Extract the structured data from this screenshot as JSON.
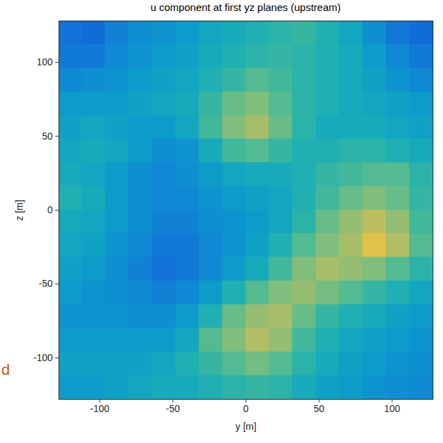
{
  "chart_data": {
    "type": "heatmap",
    "title": "u component at first yz planes (upstream)",
    "xlabel": "y [m]",
    "ylabel": "z [m]",
    "xlim": [
      -128,
      128
    ],
    "ylim": [
      -128,
      128
    ],
    "xticks": [
      -100,
      -50,
      0,
      50,
      100
    ],
    "yticks": [
      -100,
      -50,
      0,
      50,
      100
    ],
    "clim": [
      0,
      1
    ],
    "x_edges": [
      -128,
      -112,
      -96,
      -80,
      -64,
      -48,
      -32,
      -16,
      0,
      16,
      32,
      48,
      64,
      80,
      96,
      112,
      128
    ],
    "y_edges": [
      128,
      112,
      96,
      80,
      64,
      48,
      32,
      16,
      0,
      -16,
      -32,
      -48,
      -64,
      -80,
      -96,
      -112,
      -128
    ],
    "values": [
      [
        0.2,
        0.18,
        0.25,
        0.3,
        0.32,
        0.35,
        0.4,
        0.42,
        0.45,
        0.48,
        0.5,
        0.45,
        0.4,
        0.3,
        0.22,
        0.18
      ],
      [
        0.22,
        0.22,
        0.28,
        0.32,
        0.35,
        0.38,
        0.42,
        0.45,
        0.48,
        0.5,
        0.48,
        0.45,
        0.42,
        0.35,
        0.28,
        0.22
      ],
      [
        0.28,
        0.3,
        0.32,
        0.35,
        0.38,
        0.4,
        0.45,
        0.5,
        0.55,
        0.52,
        0.48,
        0.45,
        0.42,
        0.38,
        0.32,
        0.28
      ],
      [
        0.35,
        0.35,
        0.35,
        0.38,
        0.4,
        0.42,
        0.5,
        0.58,
        0.62,
        0.55,
        0.48,
        0.45,
        0.42,
        0.4,
        0.38,
        0.35
      ],
      [
        0.38,
        0.4,
        0.38,
        0.35,
        0.35,
        0.4,
        0.52,
        0.62,
        0.68,
        0.58,
        0.48,
        0.42,
        0.42,
        0.42,
        0.4,
        0.38
      ],
      [
        0.4,
        0.42,
        0.4,
        0.35,
        0.3,
        0.32,
        0.42,
        0.52,
        0.55,
        0.5,
        0.45,
        0.45,
        0.48,
        0.48,
        0.45,
        0.42
      ],
      [
        0.42,
        0.4,
        0.35,
        0.3,
        0.28,
        0.3,
        0.35,
        0.4,
        0.42,
        0.42,
        0.45,
        0.5,
        0.52,
        0.55,
        0.55,
        0.48
      ],
      [
        0.45,
        0.42,
        0.35,
        0.3,
        0.28,
        0.28,
        0.32,
        0.35,
        0.38,
        0.4,
        0.45,
        0.52,
        0.58,
        0.62,
        0.58,
        0.5
      ],
      [
        0.42,
        0.4,
        0.35,
        0.3,
        0.25,
        0.25,
        0.3,
        0.32,
        0.35,
        0.4,
        0.48,
        0.58,
        0.65,
        0.72,
        0.65,
        0.52
      ],
      [
        0.4,
        0.38,
        0.32,
        0.28,
        0.22,
        0.22,
        0.28,
        0.32,
        0.38,
        0.45,
        0.55,
        0.62,
        0.68,
        0.8,
        0.7,
        0.55
      ],
      [
        0.38,
        0.35,
        0.3,
        0.25,
        0.2,
        0.22,
        0.28,
        0.35,
        0.42,
        0.52,
        0.62,
        0.68,
        0.65,
        0.62,
        0.55,
        0.48
      ],
      [
        0.35,
        0.32,
        0.3,
        0.28,
        0.25,
        0.28,
        0.35,
        0.45,
        0.55,
        0.62,
        0.65,
        0.6,
        0.55,
        0.5,
        0.45,
        0.4
      ],
      [
        0.32,
        0.32,
        0.32,
        0.3,
        0.3,
        0.35,
        0.45,
        0.58,
        0.65,
        0.68,
        0.58,
        0.5,
        0.45,
        0.42,
        0.38,
        0.35
      ],
      [
        0.35,
        0.35,
        0.35,
        0.35,
        0.35,
        0.4,
        0.55,
        0.62,
        0.7,
        0.65,
        0.52,
        0.45,
        0.4,
        0.38,
        0.35,
        0.32
      ],
      [
        0.38,
        0.38,
        0.38,
        0.38,
        0.4,
        0.45,
        0.5,
        0.55,
        0.6,
        0.55,
        0.48,
        0.42,
        0.38,
        0.35,
        0.32,
        0.3
      ],
      [
        0.35,
        0.35,
        0.38,
        0.4,
        0.42,
        0.42,
        0.45,
        0.48,
        0.5,
        0.48,
        0.42,
        0.38,
        0.35,
        0.32,
        0.3,
        0.28
      ]
    ],
    "annotations": [
      {
        "text": "d",
        "color": "#c55a11"
      }
    ]
  }
}
